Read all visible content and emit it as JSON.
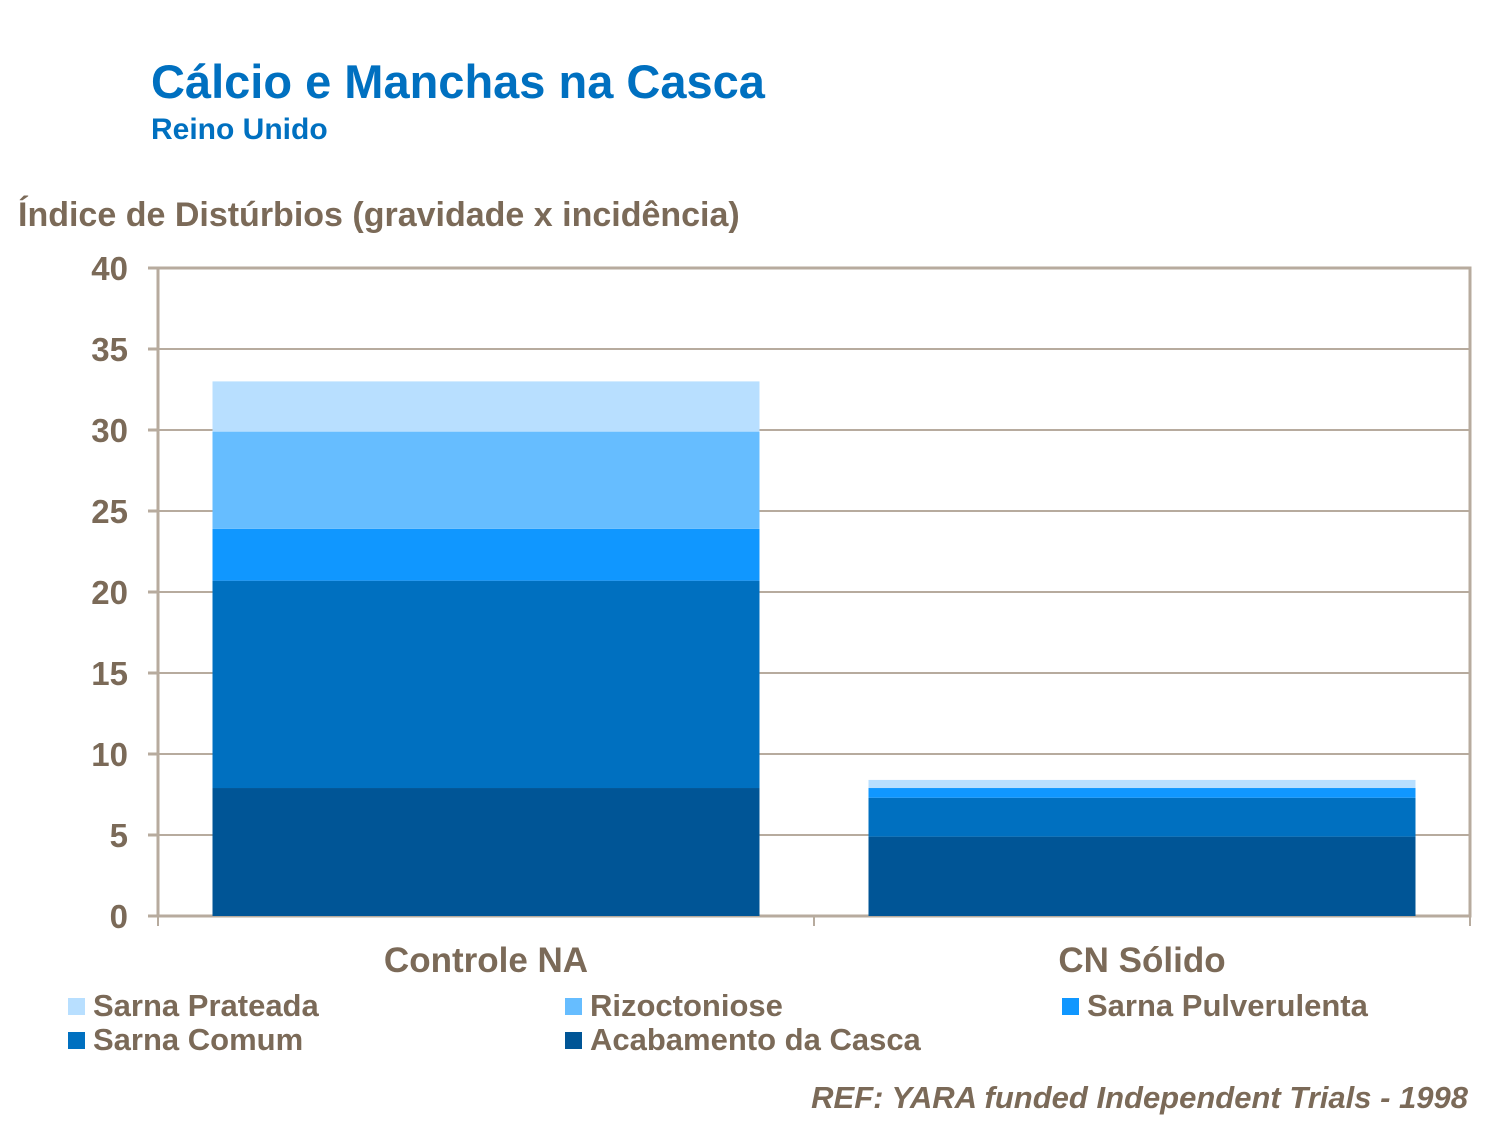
{
  "chart_data": {
    "type": "bar",
    "stacked": true,
    "title": "Cálcio e Manchas na Casca",
    "subtitle": "Reino Unido",
    "ylabel": "Índice de Distúrbios (gravidade x incidência)",
    "xlabel": "",
    "ylim": [
      0,
      40
    ],
    "yticks": [
      0,
      5,
      10,
      15,
      20,
      25,
      30,
      35,
      40
    ],
    "grid": true,
    "legend_position": "bottom",
    "categories": [
      "Controle NA",
      "CN Sólido"
    ],
    "series": [
      {
        "name": "Acabamento da Casca",
        "color": "#005596",
        "values": [
          7.9,
          4.9
        ]
      },
      {
        "name": "Sarna Comum",
        "color": "#0070c0",
        "values": [
          12.8,
          2.4
        ]
      },
      {
        "name": "Sarna Pulverulenta",
        "color": "#1097ff",
        "values": [
          3.2,
          0.6
        ]
      },
      {
        "name": "Rizoctoniose",
        "color": "#66bdff",
        "values": [
          6.0,
          0
        ]
      },
      {
        "name": "Sarna Prateada",
        "color": "#b8dfff",
        "values": [
          3.1,
          0.5
        ]
      }
    ],
    "legend_order": [
      "Sarna Prateada",
      "Rizoctoniose",
      "Sarna Pulverulenta",
      "Sarna Comum",
      "Acabamento da Casca"
    ],
    "note": "REF: YARA funded Independent Trials - 1998"
  }
}
